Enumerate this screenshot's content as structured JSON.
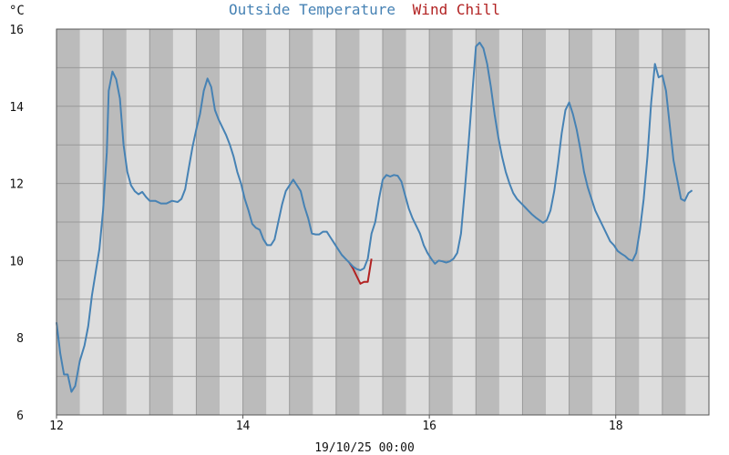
{
  "chart_data": {
    "type": "line",
    "title_parts": [
      {
        "text": "Outside Temperature",
        "color": "#4682b4"
      },
      {
        "text": "Wind Chill",
        "color": "#b22222"
      }
    ],
    "unit_label": "°C",
    "timestamp_label": "19/10/25 00:00",
    "xlim": [
      12.0,
      19.0
    ],
    "ylim": [
      6,
      16
    ],
    "x_ticks": [
      12,
      14,
      16,
      18
    ],
    "y_ticks": [
      6,
      8,
      10,
      12,
      14,
      16
    ],
    "grid": true,
    "colors": {
      "shade_dark": "#bbbbbb",
      "shade_light": "#dddddd",
      "grid": "#999999",
      "axis": "#555555"
    },
    "series": [
      {
        "name": "Outside Temperature",
        "color": "#4682b4",
        "points": [
          [
            12.0,
            8.4
          ],
          [
            12.04,
            7.6
          ],
          [
            12.08,
            7.05
          ],
          [
            12.12,
            7.05
          ],
          [
            12.16,
            6.6
          ],
          [
            12.2,
            6.75
          ],
          [
            12.25,
            7.4
          ],
          [
            12.3,
            7.8
          ],
          [
            12.34,
            8.3
          ],
          [
            12.38,
            9.1
          ],
          [
            12.42,
            9.7
          ],
          [
            12.46,
            10.3
          ],
          [
            12.5,
            11.3
          ],
          [
            12.54,
            12.8
          ],
          [
            12.56,
            14.4
          ],
          [
            12.6,
            14.9
          ],
          [
            12.64,
            14.7
          ],
          [
            12.68,
            14.2
          ],
          [
            12.72,
            13.0
          ],
          [
            12.76,
            12.3
          ],
          [
            12.8,
            11.95
          ],
          [
            12.84,
            11.8
          ],
          [
            12.88,
            11.72
          ],
          [
            12.92,
            11.78
          ],
          [
            12.96,
            11.65
          ],
          [
            13.0,
            11.55
          ],
          [
            13.06,
            11.55
          ],
          [
            13.12,
            11.48
          ],
          [
            13.18,
            11.48
          ],
          [
            13.24,
            11.55
          ],
          [
            13.3,
            11.52
          ],
          [
            13.34,
            11.6
          ],
          [
            13.38,
            11.85
          ],
          [
            13.42,
            12.4
          ],
          [
            13.46,
            12.95
          ],
          [
            13.5,
            13.4
          ],
          [
            13.54,
            13.8
          ],
          [
            13.58,
            14.4
          ],
          [
            13.62,
            14.72
          ],
          [
            13.66,
            14.5
          ],
          [
            13.7,
            13.9
          ],
          [
            13.74,
            13.65
          ],
          [
            13.78,
            13.45
          ],
          [
            13.82,
            13.25
          ],
          [
            13.86,
            13.0
          ],
          [
            13.9,
            12.7
          ],
          [
            13.94,
            12.3
          ],
          [
            13.98,
            12.0
          ],
          [
            14.02,
            11.6
          ],
          [
            14.06,
            11.3
          ],
          [
            14.1,
            10.95
          ],
          [
            14.14,
            10.85
          ],
          [
            14.18,
            10.8
          ],
          [
            14.22,
            10.55
          ],
          [
            14.26,
            10.4
          ],
          [
            14.3,
            10.4
          ],
          [
            14.34,
            10.55
          ],
          [
            14.38,
            11.0
          ],
          [
            14.42,
            11.45
          ],
          [
            14.46,
            11.8
          ],
          [
            14.5,
            11.95
          ],
          [
            14.54,
            12.1
          ],
          [
            14.58,
            11.95
          ],
          [
            14.62,
            11.8
          ],
          [
            14.66,
            11.4
          ],
          [
            14.7,
            11.1
          ],
          [
            14.74,
            10.7
          ],
          [
            14.78,
            10.68
          ],
          [
            14.82,
            10.68
          ],
          [
            14.86,
            10.75
          ],
          [
            14.9,
            10.75
          ],
          [
            14.94,
            10.6
          ],
          [
            14.98,
            10.45
          ],
          [
            15.02,
            10.3
          ],
          [
            15.06,
            10.15
          ],
          [
            15.1,
            10.05
          ],
          [
            15.14,
            9.95
          ],
          [
            15.18,
            9.85
          ],
          [
            15.22,
            9.78
          ],
          [
            15.26,
            9.75
          ],
          [
            15.3,
            9.8
          ],
          [
            15.34,
            10.05
          ],
          [
            15.38,
            10.7
          ],
          [
            15.42,
            11.0
          ],
          [
            15.46,
            11.6
          ],
          [
            15.5,
            12.1
          ],
          [
            15.54,
            12.22
          ],
          [
            15.58,
            12.18
          ],
          [
            15.62,
            12.22
          ],
          [
            15.66,
            12.2
          ],
          [
            15.7,
            12.05
          ],
          [
            15.74,
            11.7
          ],
          [
            15.78,
            11.35
          ],
          [
            15.82,
            11.1
          ],
          [
            15.86,
            10.9
          ],
          [
            15.9,
            10.7
          ],
          [
            15.94,
            10.4
          ],
          [
            15.98,
            10.2
          ],
          [
            16.02,
            10.05
          ],
          [
            16.06,
            9.92
          ],
          [
            16.1,
            10.0
          ],
          [
            16.14,
            9.98
          ],
          [
            16.18,
            9.95
          ],
          [
            16.22,
            9.98
          ],
          [
            16.26,
            10.05
          ],
          [
            16.3,
            10.2
          ],
          [
            16.34,
            10.7
          ],
          [
            16.38,
            11.8
          ],
          [
            16.42,
            13.0
          ],
          [
            16.46,
            14.3
          ],
          [
            16.5,
            15.55
          ],
          [
            16.54,
            15.65
          ],
          [
            16.58,
            15.5
          ],
          [
            16.62,
            15.1
          ],
          [
            16.66,
            14.5
          ],
          [
            16.7,
            13.8
          ],
          [
            16.74,
            13.2
          ],
          [
            16.78,
            12.7
          ],
          [
            16.82,
            12.3
          ],
          [
            16.86,
            12.0
          ],
          [
            16.9,
            11.75
          ],
          [
            16.94,
            11.6
          ],
          [
            16.98,
            11.5
          ],
          [
            17.02,
            11.4
          ],
          [
            17.06,
            11.3
          ],
          [
            17.1,
            11.2
          ],
          [
            17.14,
            11.12
          ],
          [
            17.18,
            11.05
          ],
          [
            17.22,
            10.98
          ],
          [
            17.26,
            11.05
          ],
          [
            17.3,
            11.3
          ],
          [
            17.34,
            11.8
          ],
          [
            17.38,
            12.5
          ],
          [
            17.42,
            13.3
          ],
          [
            17.46,
            13.9
          ],
          [
            17.5,
            14.1
          ],
          [
            17.54,
            13.8
          ],
          [
            17.58,
            13.4
          ],
          [
            17.62,
            12.9
          ],
          [
            17.66,
            12.3
          ],
          [
            17.7,
            11.9
          ],
          [
            17.74,
            11.6
          ],
          [
            17.78,
            11.3
          ],
          [
            17.82,
            11.1
          ],
          [
            17.86,
            10.9
          ],
          [
            17.9,
            10.7
          ],
          [
            17.94,
            10.5
          ],
          [
            17.98,
            10.4
          ],
          [
            18.02,
            10.25
          ],
          [
            18.06,
            10.18
          ],
          [
            18.1,
            10.12
          ],
          [
            18.14,
            10.03
          ],
          [
            18.18,
            10.0
          ],
          [
            18.22,
            10.2
          ],
          [
            18.26,
            10.8
          ],
          [
            18.3,
            11.6
          ],
          [
            18.34,
            12.7
          ],
          [
            18.38,
            14.1
          ],
          [
            18.42,
            15.1
          ],
          [
            18.46,
            14.75
          ],
          [
            18.5,
            14.8
          ],
          [
            18.54,
            14.4
          ],
          [
            18.58,
            13.5
          ],
          [
            18.62,
            12.6
          ],
          [
            18.66,
            12.1
          ],
          [
            18.7,
            11.6
          ],
          [
            18.74,
            11.55
          ],
          [
            18.78,
            11.75
          ],
          [
            18.82,
            11.82
          ]
        ]
      },
      {
        "name": "Wind Chill",
        "color": "#b22222",
        "points": [
          [
            15.14,
            9.95
          ],
          [
            15.18,
            9.8
          ],
          [
            15.22,
            9.6
          ],
          [
            15.26,
            9.4
          ],
          [
            15.3,
            9.45
          ],
          [
            15.34,
            9.45
          ],
          [
            15.38,
            10.05
          ]
        ]
      }
    ]
  }
}
